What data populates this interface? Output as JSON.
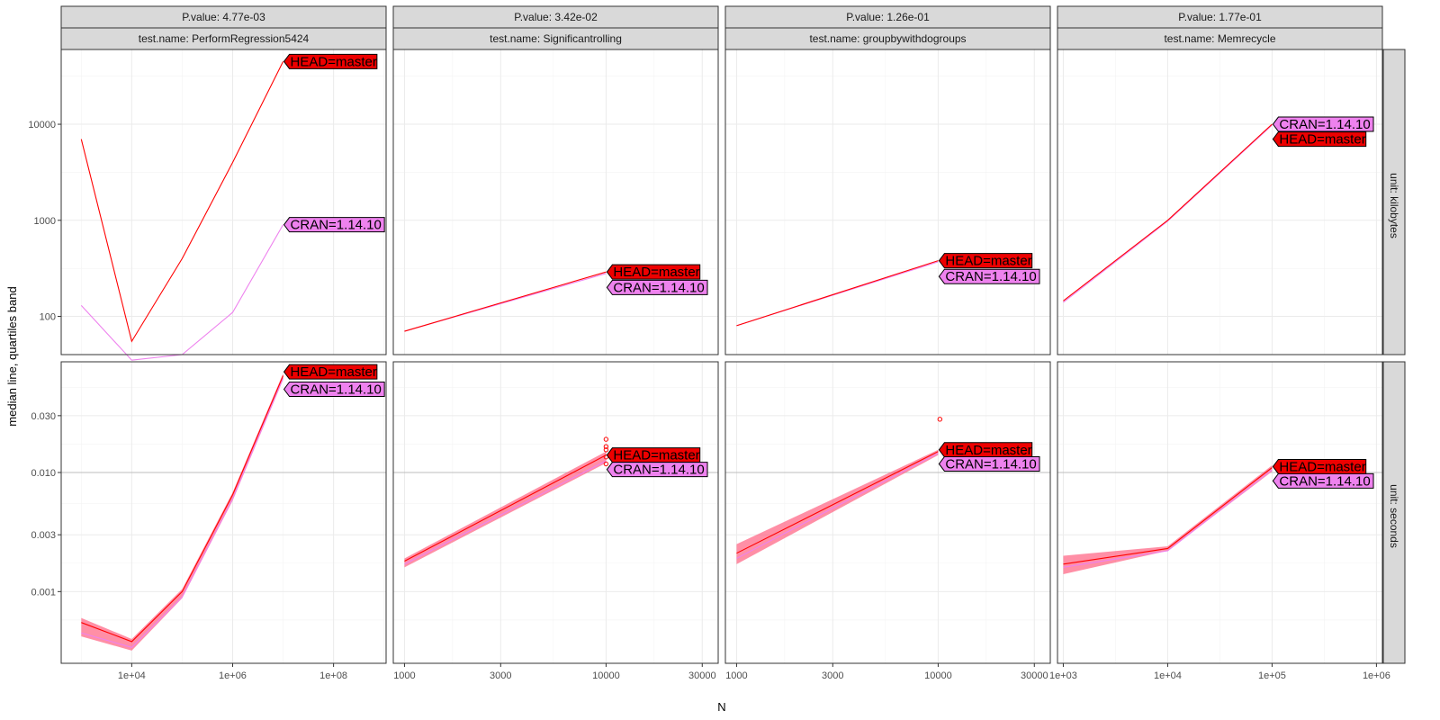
{
  "chart_data": {
    "type": "line",
    "xlabel": "N",
    "ylabel": "median line, quartiles band",
    "y_scale": "log10",
    "row_facets": [
      {
        "label": "unit: kilobytes",
        "ylim": [
          40,
          60000
        ],
        "ticks": [
          100,
          1000,
          10000
        ],
        "tick_labels": [
          "100",
          "1000",
          "10000"
        ]
      },
      {
        "label": "unit: seconds",
        "ylim": [
          0.00025,
          0.085
        ],
        "ticks": [
          0.001,
          0.003,
          0.01,
          0.03
        ],
        "tick_labels": [
          "0.001",
          "0.003",
          "0.010",
          "0.030"
        ],
        "hline": 0.01
      }
    ],
    "colors": {
      "HEAD": "#ff0000",
      "CRAN": "#ee82ee",
      "band": "#ff6080"
    },
    "panels": [
      {
        "pvalue": "P.value: 4.77e-03",
        "test": "test.name: PerformRegression5424",
        "x_scale": "log10",
        "xlim": [
          400,
          1100000000.0
        ],
        "xticks": [
          10000,
          1000000,
          100000000
        ],
        "xtick_labels": [
          "1e+04",
          "1e+06",
          "1e+08"
        ],
        "kilobytes": {
          "HEAD": {
            "x": [
              1000,
              10000,
              100000,
              1000000,
              10000000
            ],
            "y": [
              7000,
              55,
              400,
              4000,
              45000
            ]
          },
          "CRAN": {
            "x": [
              1000,
              10000,
              100000,
              1000000,
              10000000
            ],
            "y": [
              130,
              35,
              40,
              110,
              900
            ]
          },
          "labels": [
            {
              "text": "HEAD=master",
              "series": "HEAD",
              "y": 45000
            },
            {
              "text": "CRAN=1.14.10",
              "series": "CRAN",
              "y": 900
            }
          ]
        },
        "seconds": {
          "HEAD": {
            "x": [
              1000,
              10000,
              100000,
              1000000,
              10000000
            ],
            "y": [
              0.00055,
              0.00038,
              0.001,
              0.0065,
              0.065
            ]
          },
          "CRAN": {
            "x": [
              1000,
              10000,
              100000,
              1000000,
              10000000
            ],
            "y": [
              0.00045,
              0.00034,
              0.0009,
              0.006,
              0.062
            ]
          },
          "band_low": [
            0.00042,
            0.00032,
            0.00088,
            0.0058,
            0.06
          ],
          "band_high": [
            0.0006,
            0.0004,
            0.00105,
            0.0068,
            0.068
          ],
          "labels": [
            {
              "text": "HEAD=master",
              "series": "HEAD",
              "y": 0.07
            },
            {
              "text": "CRAN=1.14.10",
              "series": "CRAN",
              "y": 0.05
            }
          ]
        }
      },
      {
        "pvalue": "P.value: 3.42e-02",
        "test": "test.name: Significantrolling",
        "x_scale": "log10",
        "xlim": [
          880,
          36000
        ],
        "xticks": [
          1000,
          3000,
          10000,
          30000
        ],
        "xtick_labels": [
          "1000",
          "3000",
          "10000",
          "30000"
        ],
        "kilobytes": {
          "HEAD": {
            "x": [
              1000,
              10000
            ],
            "y": [
              70,
              290
            ]
          },
          "CRAN": {
            "x": [
              1000,
              10000
            ],
            "y": [
              70,
              280
            ]
          },
          "labels": [
            {
              "text": "HEAD=master",
              "series": "HEAD",
              "y": 290
            },
            {
              "text": "CRAN=1.14.10",
              "series": "CRAN",
              "y": 200
            }
          ]
        },
        "seconds": {
          "HEAD": {
            "x": [
              1000,
              10000
            ],
            "y": [
              0.0018,
              0.014
            ]
          },
          "CRAN": {
            "x": [
              1000,
              10000
            ],
            "y": [
              0.0017,
              0.0125
            ]
          },
          "band_low": [
            0.0016,
            0.012
          ],
          "band_high": [
            0.0019,
            0.015
          ],
          "outliers": {
            "x": [
              10000,
              10000,
              10000,
              10000,
              10000
            ],
            "y": [
              0.019,
              0.0165,
              0.0155,
              0.0135,
              0.0118
            ]
          },
          "labels": [
            {
              "text": "HEAD=master",
              "series": "HEAD",
              "y": 0.014
            },
            {
              "text": "CRAN=1.14.10",
              "series": "CRAN",
              "y": 0.0106
            }
          ]
        }
      },
      {
        "pvalue": "P.value: 1.26e-01",
        "test": "test.name: groupbywithdogroups",
        "x_scale": "log10",
        "xlim": [
          880,
          36000
        ],
        "xticks": [
          1000,
          3000,
          10000,
          30000
        ],
        "xtick_labels": [
          "1000",
          "3000",
          "10000",
          "30000"
        ],
        "kilobytes": {
          "HEAD": {
            "x": [
              1000,
              10000
            ],
            "y": [
              80,
              380
            ]
          },
          "CRAN": {
            "x": [
              1000,
              10000
            ],
            "y": [
              80,
              370
            ]
          },
          "labels": [
            {
              "text": "HEAD=master",
              "series": "HEAD",
              "y": 380
            },
            {
              "text": "CRAN=1.14.10",
              "series": "CRAN",
              "y": 260
            }
          ]
        },
        "seconds": {
          "HEAD": {
            "x": [
              1000,
              10000
            ],
            "y": [
              0.0021,
              0.015
            ]
          },
          "CRAN": {
            "x": [
              1000,
              10000
            ],
            "y": [
              0.0019,
              0.0145
            ]
          },
          "band_low": [
            0.0017,
            0.014
          ],
          "band_high": [
            0.0025,
            0.0155
          ],
          "outliers": {
            "x": [
              10200
            ],
            "y": [
              0.028
            ]
          },
          "labels": [
            {
              "text": "HEAD=master",
              "series": "HEAD",
              "y": 0.0155
            },
            {
              "text": "CRAN=1.14.10",
              "series": "CRAN",
              "y": 0.0118
            }
          ]
        }
      },
      {
        "pvalue": "P.value: 1.77e-01",
        "test": "test.name: Memrecycle",
        "x_scale": "log10",
        "xlim": [
          880,
          1140000.0
        ],
        "xticks": [
          1000,
          10000,
          100000,
          1000000
        ],
        "xtick_labels": [
          "1e+03",
          "1e+04",
          "1e+05",
          "1e+06"
        ],
        "kilobytes": {
          "HEAD": {
            "x": [
              1000,
              10000,
              100000
            ],
            "y": [
              145,
              1000,
              10000
            ]
          },
          "CRAN": {
            "x": [
              1000,
              10000,
              100000
            ],
            "y": [
              140,
              980,
              9800
            ]
          },
          "labels": [
            {
              "text": "CRAN=1.14.10",
              "series": "CRAN",
              "y": 10000
            },
            {
              "text": "HEAD=master",
              "series": "HEAD",
              "y": 7000
            }
          ]
        },
        "seconds": {
          "HEAD": {
            "x": [
              1000,
              10000,
              100000
            ],
            "y": [
              0.0017,
              0.0023,
              0.011
            ]
          },
          "CRAN": {
            "x": [
              1000,
              10000,
              100000
            ],
            "y": [
              0.0016,
              0.0022,
              0.0105
            ]
          },
          "band_low": [
            0.0014,
            0.0022,
            0.0102
          ],
          "band_high": [
            0.002,
            0.0024,
            0.0115
          ],
          "labels": [
            {
              "text": "HEAD=master",
              "series": "HEAD",
              "y": 0.0112
            },
            {
              "text": "CRAN=1.14.10",
              "series": "CRAN",
              "y": 0.0085
            }
          ]
        }
      }
    ]
  }
}
